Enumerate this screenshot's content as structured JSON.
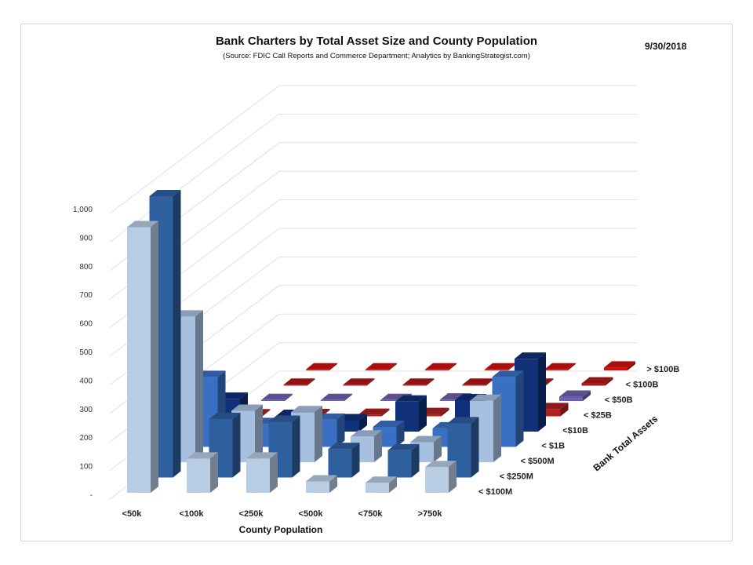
{
  "header": {
    "title": "Bank Charters by Total Asset Size and County Population",
    "subtitle": "(Source: FDIC Call Reports and Commerce Department; Analytics by BankingStrategist.com)",
    "date": "9/30/2018"
  },
  "chart_data": {
    "type": "bar",
    "subtype": "3d-column",
    "title": "Bank Charters by Total Asset Size and County Population",
    "subtitle": "(Source: FDIC Call Reports and Commerce Department; Analytics by BankingStrategist.com)",
    "xlabel": "County Population",
    "zlabel": "Bank Total Assets",
    "ylim": [
      0,
      1000
    ],
    "yticks": [
      "-",
      "100",
      "200",
      "300",
      "400",
      "500",
      "600",
      "700",
      "800",
      "900",
      "1,000"
    ],
    "categories": [
      "<50k",
      "<100k",
      "<250k",
      "<500k",
      "<750k",
      ">750k"
    ],
    "series": [
      {
        "name": "< $100M",
        "color": "#b8cce4",
        "values": [
          930,
          120,
          120,
          40,
          35,
          90
        ]
      },
      {
        "name": "< $250M",
        "color": "#2e5f9e",
        "values": [
          985,
          205,
          195,
          100,
          95,
          190
        ]
      },
      {
        "name": "< $500M",
        "color": "#a8c0e0",
        "values": [
          510,
          180,
          175,
          90,
          70,
          215
        ]
      },
      {
        "name": "< $1B",
        "color": "#3a70c4",
        "values": [
          245,
          80,
          95,
          70,
          65,
          245
        ]
      },
      {
        "name": "<$10B",
        "color": "#10307a",
        "values": [
          115,
          55,
          40,
          105,
          110,
          255
        ]
      },
      {
        "name": "< $25B",
        "color": "#b02020",
        "values": [
          3,
          4,
          5,
          8,
          8,
          25
        ]
      },
      {
        "name": "< $50B",
        "color": "#7060b0",
        "values": [
          1,
          1,
          2,
          5,
          5,
          15
        ]
      },
      {
        "name": "< $100B",
        "color": "#b01818",
        "values": [
          0,
          0,
          0,
          2,
          2,
          8
        ]
      },
      {
        "name": "> $100B",
        "color": "#d01010",
        "values": [
          0,
          0,
          1,
          2,
          2,
          10
        ]
      }
    ],
    "grid": true,
    "legend": "none"
  }
}
